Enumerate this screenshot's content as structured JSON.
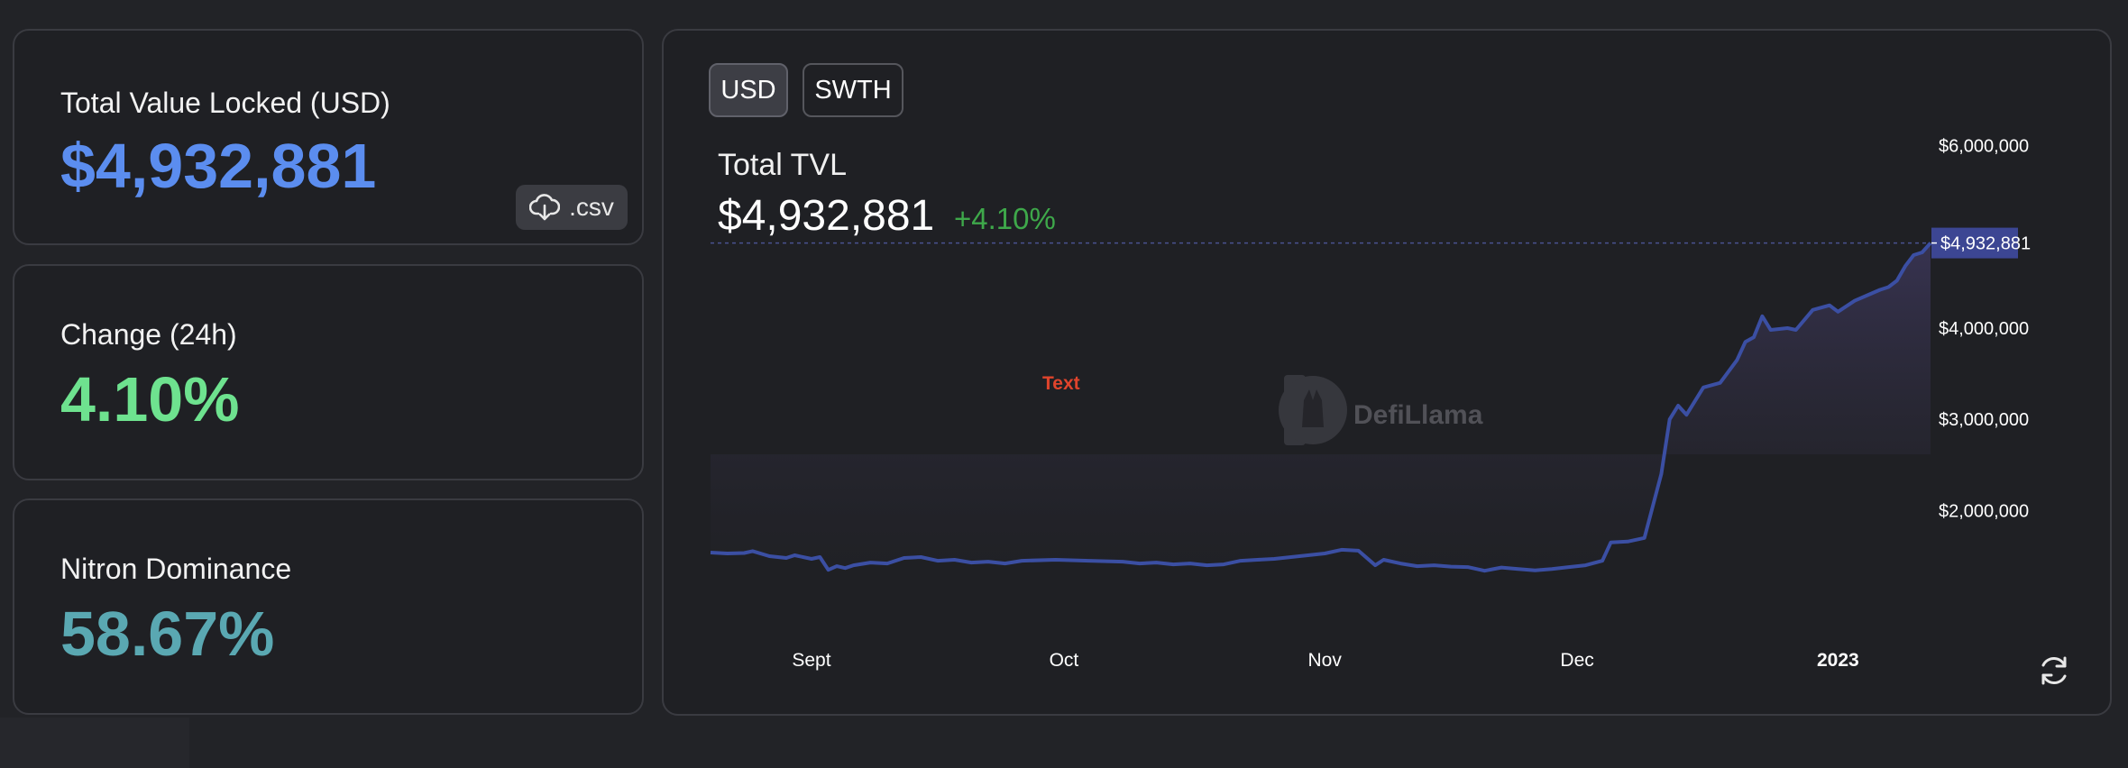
{
  "stats": {
    "tvl": {
      "label": "Total Value Locked (USD)",
      "value": "$4,932,881",
      "color": "#5b8def"
    },
    "change": {
      "label": "Change (24h)",
      "value": "4.10%",
      "color": "#6ee28f"
    },
    "dominance": {
      "label": "Nitron Dominance",
      "value": "58.67%",
      "color": "#5aa8b2"
    },
    "csv_label": ".csv",
    "csv_icon": "cloud-download-icon"
  },
  "chart_header": {
    "toggles": [
      "USD",
      "SWTH"
    ],
    "active_toggle": "USD",
    "title": "Total TVL",
    "value": "$4,932,881",
    "change": "+4.10%",
    "change_color": "#3ea84a"
  },
  "overlay_text": "Text",
  "watermark": "DefiLlama",
  "refresh_icon": "refresh-icon",
  "chart_data": {
    "type": "area",
    "line_color": "#3b4fa3",
    "x_ticks": [
      "Sept",
      "Oct",
      "Nov",
      "Dec",
      "2023"
    ],
    "y_ticks": [
      {
        "value": 2000000,
        "label": "$2,000,000"
      },
      {
        "value": 3000000,
        "label": "$3,000,000"
      },
      {
        "value": 4000000,
        "label": "$4,000,000"
      },
      {
        "value": 6000000,
        "label": "$6,000,000"
      }
    ],
    "current_value": 4932881,
    "current_label": "$4,932,881",
    "xlim": [
      "2022-08-20",
      "2023-01-12"
    ],
    "ylim": [
      1300000,
      6500000
    ],
    "grid": false,
    "series": [
      {
        "points": [
          [
            "2022-08-20",
            1540000
          ],
          [
            "2022-08-22",
            1530000
          ],
          [
            "2022-08-24",
            1535000
          ],
          [
            "2022-08-25",
            1555000
          ],
          [
            "2022-08-27",
            1500000
          ],
          [
            "2022-08-29",
            1480000
          ],
          [
            "2022-08-30",
            1510000
          ],
          [
            "2022-09-01",
            1470000
          ],
          [
            "2022-09-02",
            1490000
          ],
          [
            "2022-09-03",
            1350000
          ],
          [
            "2022-09-04",
            1390000
          ],
          [
            "2022-09-05",
            1370000
          ],
          [
            "2022-09-06",
            1400000
          ],
          [
            "2022-09-08",
            1430000
          ],
          [
            "2022-09-10",
            1420000
          ],
          [
            "2022-09-12",
            1480000
          ],
          [
            "2022-09-14",
            1490000
          ],
          [
            "2022-09-16",
            1450000
          ],
          [
            "2022-09-18",
            1460000
          ],
          [
            "2022-09-20",
            1430000
          ],
          [
            "2022-09-22",
            1440000
          ],
          [
            "2022-09-24",
            1420000
          ],
          [
            "2022-09-26",
            1450000
          ],
          [
            "2022-09-30",
            1460000
          ],
          [
            "2022-10-04",
            1450000
          ],
          [
            "2022-10-08",
            1440000
          ],
          [
            "2022-10-10",
            1420000
          ],
          [
            "2022-10-12",
            1430000
          ],
          [
            "2022-10-14",
            1410000
          ],
          [
            "2022-10-16",
            1420000
          ],
          [
            "2022-10-18",
            1400000
          ],
          [
            "2022-10-20",
            1410000
          ],
          [
            "2022-10-22",
            1450000
          ],
          [
            "2022-10-24",
            1460000
          ],
          [
            "2022-10-26",
            1470000
          ],
          [
            "2022-10-28",
            1490000
          ],
          [
            "2022-10-30",
            1510000
          ],
          [
            "2022-11-01",
            1530000
          ],
          [
            "2022-11-03",
            1570000
          ],
          [
            "2022-11-05",
            1560000
          ],
          [
            "2022-11-07",
            1400000
          ],
          [
            "2022-11-08",
            1460000
          ],
          [
            "2022-11-10",
            1420000
          ],
          [
            "2022-11-12",
            1390000
          ],
          [
            "2022-11-14",
            1400000
          ],
          [
            "2022-11-16",
            1385000
          ],
          [
            "2022-11-18",
            1380000
          ],
          [
            "2022-11-20",
            1340000
          ],
          [
            "2022-11-22",
            1375000
          ],
          [
            "2022-11-24",
            1360000
          ],
          [
            "2022-11-26",
            1345000
          ],
          [
            "2022-11-28",
            1360000
          ],
          [
            "2022-11-30",
            1380000
          ],
          [
            "2022-12-02",
            1400000
          ],
          [
            "2022-12-04",
            1450000
          ],
          [
            "2022-12-05",
            1650000
          ],
          [
            "2022-12-07",
            1660000
          ],
          [
            "2022-12-09",
            1700000
          ],
          [
            "2022-12-11",
            2400000
          ],
          [
            "2022-12-12",
            3000000
          ],
          [
            "2022-12-13",
            3150000
          ],
          [
            "2022-12-14",
            3050000
          ],
          [
            "2022-12-16",
            3350000
          ],
          [
            "2022-12-18",
            3400000
          ],
          [
            "2022-12-20",
            3650000
          ],
          [
            "2022-12-21",
            3850000
          ],
          [
            "2022-12-22",
            3900000
          ],
          [
            "2022-12-23",
            4130000
          ],
          [
            "2022-12-24",
            3980000
          ],
          [
            "2022-12-26",
            4000000
          ],
          [
            "2022-12-27",
            3980000
          ],
          [
            "2022-12-29",
            4200000
          ],
          [
            "2022-12-31",
            4250000
          ],
          [
            "2023-01-01",
            4180000
          ],
          [
            "2023-01-03",
            4300000
          ],
          [
            "2023-01-05",
            4380000
          ],
          [
            "2023-01-06",
            4420000
          ],
          [
            "2023-01-07",
            4450000
          ],
          [
            "2023-01-08",
            4520000
          ],
          [
            "2023-01-09",
            4680000
          ],
          [
            "2023-01-10",
            4800000
          ],
          [
            "2023-01-11",
            4830000
          ],
          [
            "2023-01-12",
            4932881
          ]
        ]
      }
    ]
  }
}
